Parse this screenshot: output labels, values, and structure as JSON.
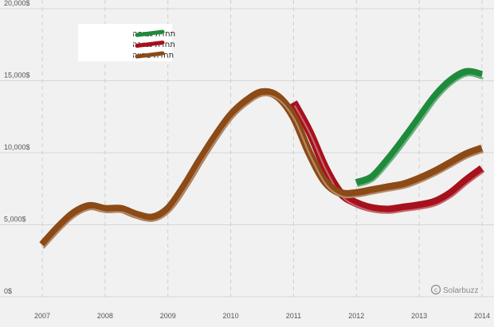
{
  "chart_data": {
    "type": "line",
    "title": "",
    "xlabel": "",
    "ylabel": "",
    "xlim": [
      2007,
      2014
    ],
    "ylim": [
      0,
      20000
    ],
    "x_ticks": [
      2007,
      2008,
      2009,
      2010,
      2011,
      2012,
      2013,
      2014
    ],
    "x_tick_labels": [
      "2007",
      "2008",
      "2009",
      "2010",
      "2011",
      "2012",
      "2013",
      "2014"
    ],
    "y_ticks": [
      0,
      5000,
      10000,
      15000,
      20000
    ],
    "y_tick_labels": [
      "0$",
      "5,000$",
      "10,000$",
      "15,000$",
      "20,000$"
    ],
    "grid": {
      "horizontal": true,
      "vertical": "dashed"
    },
    "legend_position": "top-left",
    "series": [
      {
        "name": "תחזית גבוהה",
        "color": "#1f8a3c",
        "x": [
          2012.0,
          2012.25,
          2012.5,
          2012.75,
          2013.0,
          2013.25,
          2013.5,
          2013.75,
          2014.0
        ],
        "y": [
          7900,
          8300,
          9500,
          10900,
          12400,
          13900,
          15000,
          15600,
          15400
        ]
      },
      {
        "name": "תחזית נמוכה",
        "color": "#a5111c",
        "x": [
          2011.0,
          2011.25,
          2011.5,
          2011.75,
          2012.0,
          2012.25,
          2012.5,
          2012.75,
          2013.0,
          2013.25,
          2013.5,
          2013.75,
          2014.0
        ],
        "y": [
          13500,
          11500,
          9000,
          7200,
          6500,
          6150,
          6050,
          6200,
          6350,
          6600,
          7200,
          8100,
          8900
        ]
      },
      {
        "name": "תחזית צפויה",
        "color": "#8b4a16",
        "x": [
          2007.0,
          2007.25,
          2007.5,
          2007.75,
          2008.0,
          2008.25,
          2008.5,
          2008.75,
          2009.0,
          2009.25,
          2009.5,
          2009.75,
          2010.0,
          2010.25,
          2010.5,
          2010.75,
          2011.0,
          2011.25,
          2011.5,
          2011.75,
          2012.0,
          2012.25,
          2012.5,
          2012.75,
          2013.0,
          2013.25,
          2013.5,
          2013.75,
          2014.0
        ],
        "y": [
          3600,
          4800,
          5800,
          6300,
          6100,
          6100,
          5700,
          5500,
          6100,
          7600,
          9400,
          11100,
          12600,
          13600,
          14200,
          13900,
          12500,
          10000,
          8000,
          7200,
          7200,
          7400,
          7600,
          7800,
          8200,
          8700,
          9300,
          9900,
          10300
        ]
      }
    ]
  },
  "legend": {
    "items": [
      {
        "label": "תחזית גבוהה",
        "color": "#1f8a3c"
      },
      {
        "label": "תחזית נמוכה",
        "color": "#a5111c"
      },
      {
        "label": "תחזית צפויה",
        "color": "#8b4a16"
      }
    ]
  },
  "credit": {
    "icon": "copyright-icon",
    "text": "Solarbuzz"
  }
}
